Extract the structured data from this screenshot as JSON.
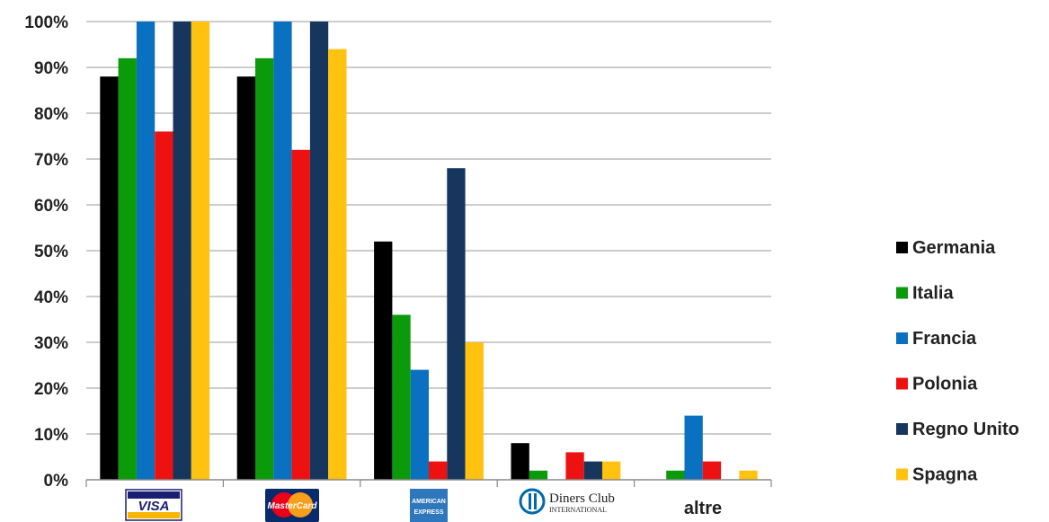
{
  "chart_data": {
    "type": "bar",
    "categories": [
      "VISA",
      "MasterCard",
      "American Express",
      "Diners Club International",
      "altre"
    ],
    "series": [
      {
        "name": "Germania",
        "color": "#000000",
        "values": [
          88,
          88,
          52,
          8,
          0
        ]
      },
      {
        "name": "Italia",
        "color": "#0a9a0a",
        "values": [
          92,
          92,
          36,
          2,
          2
        ]
      },
      {
        "name": "Francia",
        "color": "#0a70c0",
        "values": [
          100,
          100,
          24,
          0,
          14
        ]
      },
      {
        "name": "Polonia",
        "color": "#ee1111",
        "values": [
          76,
          72,
          4,
          6,
          4
        ]
      },
      {
        "name": "Regno Unito",
        "color": "#17365d",
        "values": [
          100,
          100,
          68,
          4,
          0
        ]
      },
      {
        "name": "Spagna",
        "color": "#ffc20e",
        "values": [
          100,
          94,
          30,
          4,
          2
        ]
      }
    ],
    "ylim": [
      0,
      100
    ],
    "yticks": [
      "0%",
      "10%",
      "20%",
      "30%",
      "40%",
      "50%",
      "60%",
      "70%",
      "80%",
      "90%",
      "100%"
    ],
    "grid": true,
    "legend": "right"
  },
  "logos": {
    "visa": "VISA",
    "mastercard": "MasterCard",
    "amex_line1": "AMERICAN",
    "amex_line2": "EXPRESS",
    "diners_line1": "Diners Club",
    "diners_line2": "INTERNATIONAL"
  },
  "category_label_altre": "altre"
}
